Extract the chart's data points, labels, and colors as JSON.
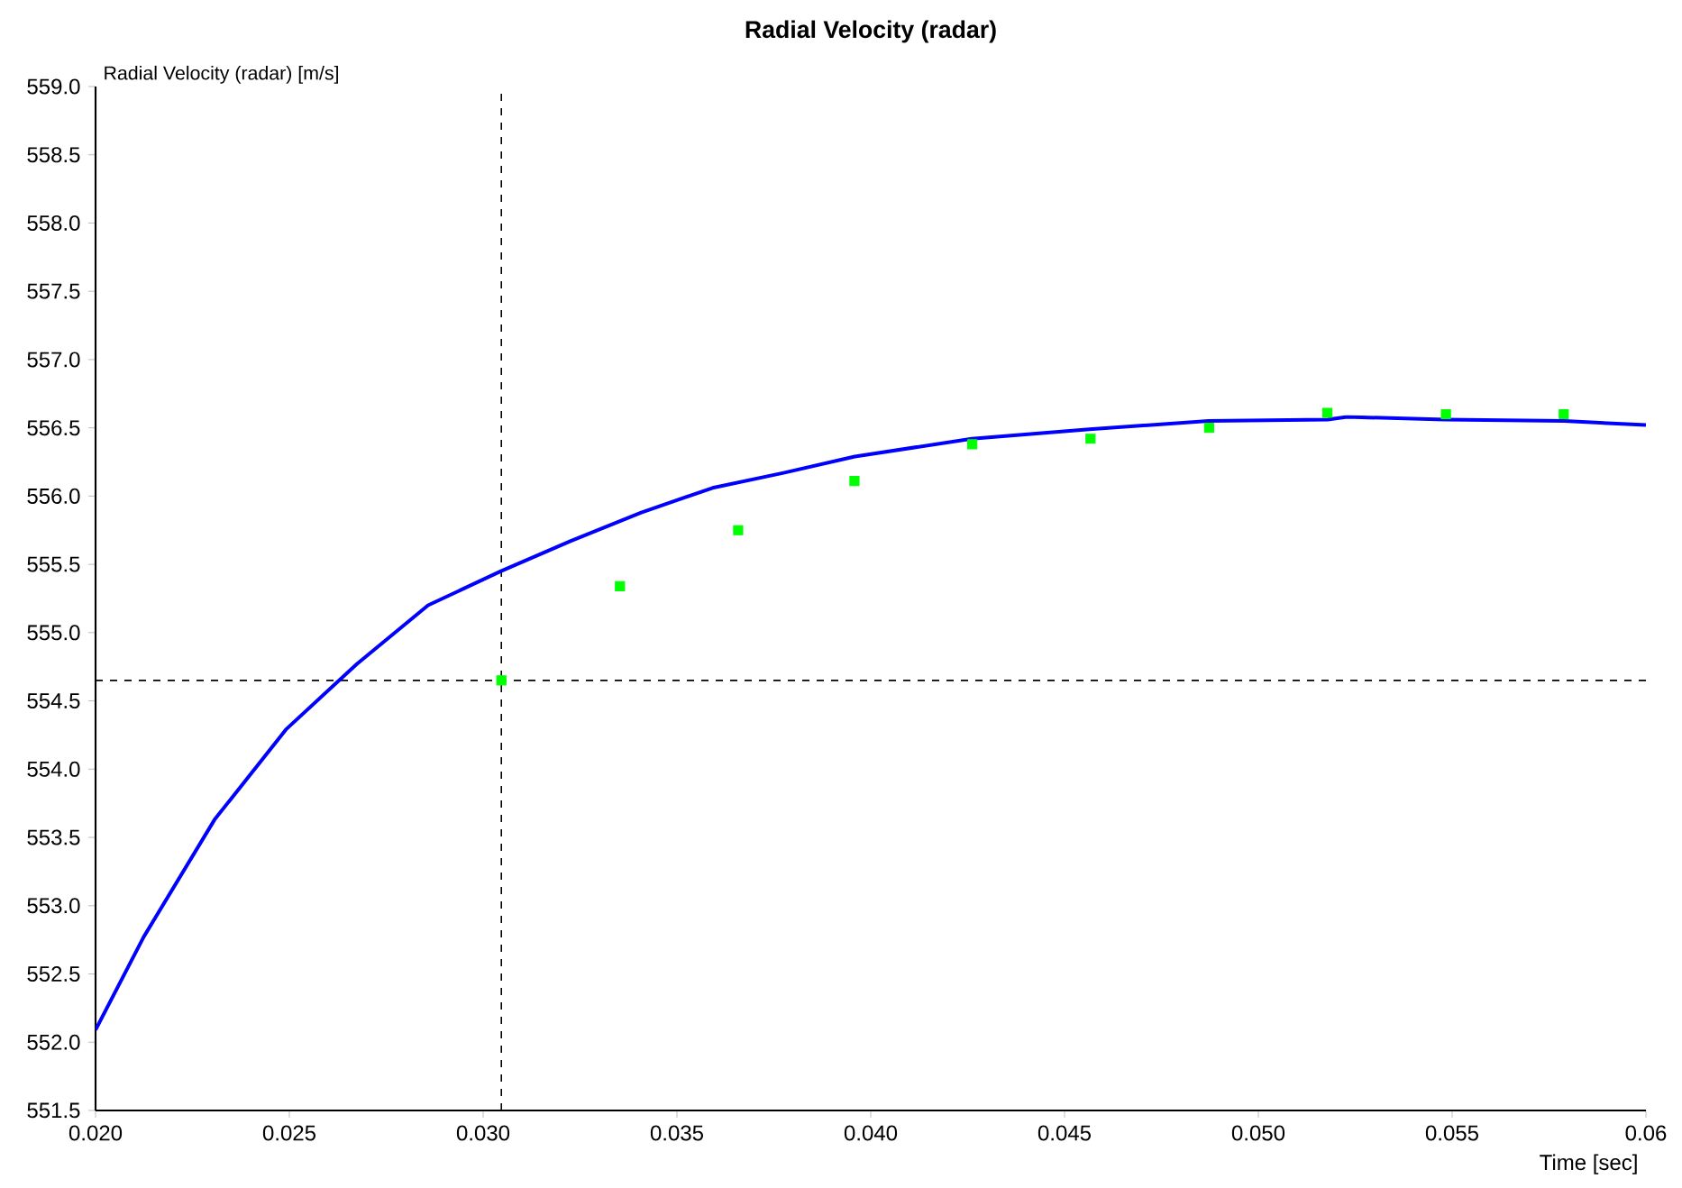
{
  "chart_data": {
    "type": "line",
    "title": "Radial Velocity (radar)",
    "xlabel": "Time [sec]",
    "ylabel": "Radial Velocity (radar) [m/s]",
    "xlim": [
      0.02,
      0.06
    ],
    "ylim": [
      551.5,
      559.0
    ],
    "xticks": [
      {
        "value": 0.02,
        "label": "0.020"
      },
      {
        "value": 0.025,
        "label": "0.025"
      },
      {
        "value": 0.03,
        "label": "0.030"
      },
      {
        "value": 0.035,
        "label": "0.035"
      },
      {
        "value": 0.04,
        "label": "0.040"
      },
      {
        "value": 0.045,
        "label": "0.045"
      },
      {
        "value": 0.05,
        "label": "0.050"
      },
      {
        "value": 0.055,
        "label": "0.055"
      },
      0.06
    ],
    "yticks": [
      {
        "value": 551.5,
        "label": "551.5"
      },
      {
        "value": 552,
        "label": "552.0"
      },
      {
        "value": 552.5,
        "label": "552.5"
      },
      {
        "value": 553,
        "label": "553.0"
      },
      {
        "value": 553.5,
        "label": "553.5"
      },
      {
        "value": 554,
        "label": "554.0"
      },
      {
        "value": 554.5,
        "label": "554.5"
      },
      {
        "value": 555,
        "label": "555.0"
      },
      {
        "value": 555.5,
        "label": "555.5"
      },
      {
        "value": 556,
        "label": "556.0"
      },
      {
        "value": 556.5,
        "label": "556.5"
      },
      {
        "value": 557,
        "label": "557.0"
      },
      {
        "value": 557.5,
        "label": "557.5"
      },
      {
        "value": 558,
        "label": "558.0"
      },
      {
        "value": 558.5,
        "label": "558.5"
      },
      {
        "value": 559,
        "label": "559.0"
      }
    ],
    "grid": false,
    "series": [
      {
        "color": "#0000ff",
        "marker": "none",
        "x": [
          0.02,
          0.02124,
          0.02307,
          0.02491,
          0.02674,
          0.02858,
          0.03046,
          0.03225,
          0.03408,
          0.03592,
          0.03775,
          0.03959,
          0.04261,
          0.04564,
          0.04872,
          0.05179,
          0.05229,
          0.05482,
          0.05789,
          0.06
        ],
        "values": [
          552.09,
          552.77,
          553.63,
          554.29,
          554.77,
          555.2,
          555.45,
          555.67,
          555.88,
          556.06,
          556.17,
          556.29,
          556.42,
          556.49,
          556.55,
          556.56,
          556.58,
          556.56,
          556.55,
          556.52
        ]
      },
      {
        "type": "scatter",
        "color": "#00ff00",
        "marker": "square",
        "x": [
          0.03047,
          0.03353,
          0.03658,
          0.03958,
          0.04262,
          0.04567,
          0.04873,
          0.05178,
          0.05484,
          0.05788
        ],
        "values": [
          554.65,
          555.34,
          555.75,
          556.11,
          556.38,
          556.42,
          556.5,
          556.61,
          556.6,
          556.6
        ]
      }
    ],
    "ref_lines": [
      {
        "axis": "x",
        "value": 0.03047,
        "line_style": "dashed",
        "color": "#000000"
      },
      {
        "axis": "y",
        "value": 554.65,
        "line_style": "dashed",
        "color": "#000000"
      }
    ]
  }
}
